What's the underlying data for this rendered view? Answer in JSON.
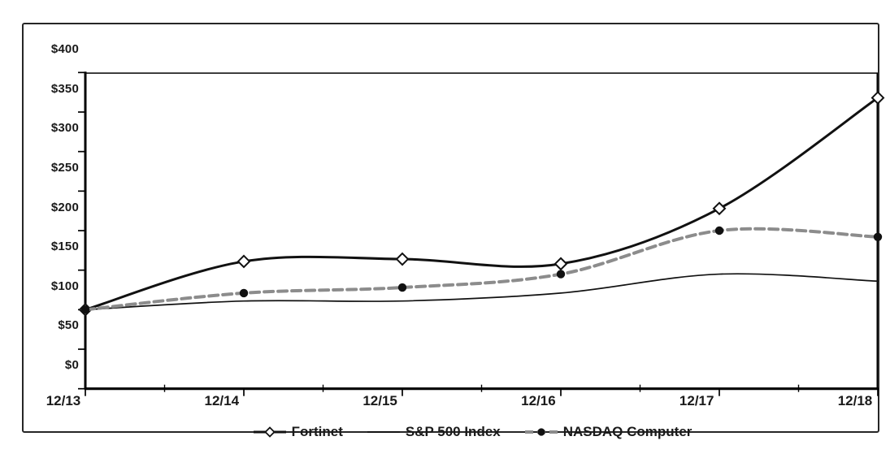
{
  "window": {
    "background": "#ffffff",
    "border_color": "#262626",
    "text_color": "#1a1a1a"
  },
  "chart_data": {
    "type": "line",
    "title": "",
    "xlabel": "",
    "ylabel": "",
    "x_tick_labels": [
      "12/13",
      "12/14",
      "12/15",
      "12/16",
      "12/17",
      "12/18"
    ],
    "y_tick_labels": [
      "$400",
      "$350",
      "$300",
      "$250",
      "$200",
      "$150",
      "$100",
      "$50",
      "$0"
    ],
    "ylim": [
      0,
      400
    ],
    "y_tick_step": 50,
    "grid": false,
    "smooth_lines": true,
    "legend_position": "bottom-center",
    "axis_color": "#000000",
    "series": [
      {
        "name": "Fortinet",
        "values": [
          100,
          161,
          164,
          158,
          228,
          368
        ],
        "color": "#111111",
        "line_style": "solid",
        "line_width": 3,
        "marker": "open-diamond",
        "marker_fill": "#ffffff",
        "marker_stroke": "#111111"
      },
      {
        "name": "S&P 500 Index",
        "values": [
          100,
          111,
          111,
          121,
          145,
          136
        ],
        "color": "#111111",
        "line_style": "solid",
        "line_width": 1.7,
        "marker": "none"
      },
      {
        "name": "NASDAQ Computer",
        "values": [
          100,
          121,
          128,
          145,
          200,
          192
        ],
        "color": "#8c8c8c",
        "line_style": "dashed",
        "line_width": 4,
        "marker": "filled-circle",
        "marker_fill": "#111111"
      }
    ]
  }
}
